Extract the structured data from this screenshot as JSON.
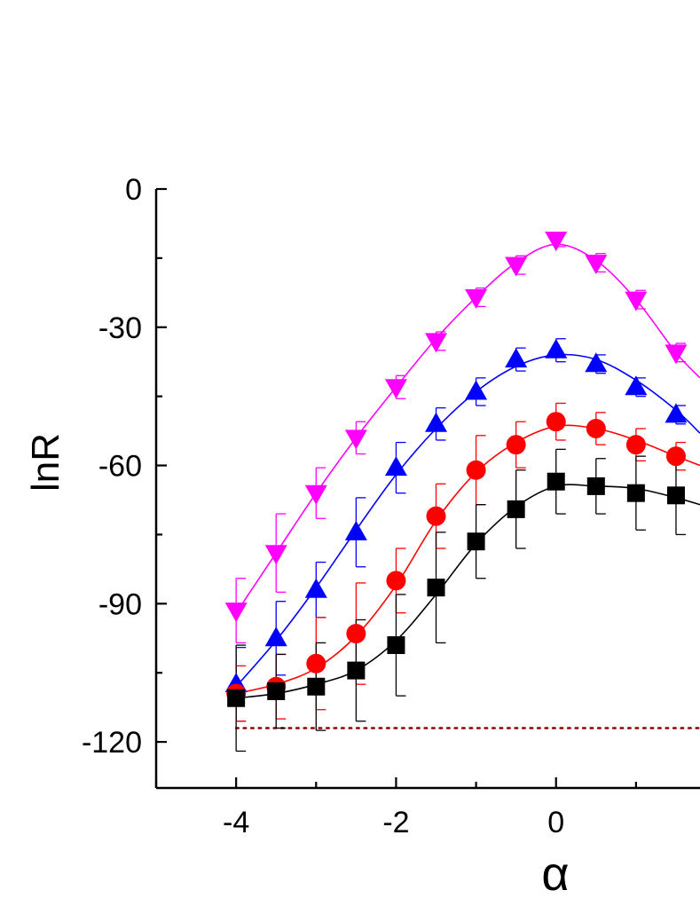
{
  "chart_data": {
    "type": "line",
    "xlabel": "α",
    "ylabel": "lnR",
    "xlim": [
      -5,
      1.8
    ],
    "ylim": [
      -130,
      0
    ],
    "xticks": [
      -4,
      -2,
      0
    ],
    "xtick_labels": [
      "-4",
      "-2",
      "0"
    ],
    "yticks": [
      0,
      -30,
      -60,
      -90,
      -120
    ],
    "ytick_labels": [
      "0",
      "-30",
      "-60",
      "-90",
      "-120"
    ],
    "x": [
      -4,
      -3.5,
      -3,
      -2.5,
      -2,
      -1.5,
      -1,
      -0.5,
      0,
      0.5,
      1,
      1.5
    ],
    "series": [
      {
        "marker": "triangle-down",
        "color": "#ff00ff",
        "values": [
          -91.5,
          -79,
          -66,
          -54,
          -43,
          -33,
          -23.5,
          -16.5,
          -11,
          -16,
          -24,
          -35.5
        ],
        "err_plus": [
          7,
          8.5,
          5.5,
          3.5,
          2.5,
          2,
          2,
          2,
          1.5,
          2,
          2,
          2
        ],
        "err_minus": [
          7,
          8.5,
          5.5,
          3.5,
          2.5,
          2,
          2,
          2,
          1.5,
          2,
          2,
          2
        ],
        "curve": [
          [
            -4,
            -92
          ],
          [
            -3.5,
            -79
          ],
          [
            -3,
            -66
          ],
          [
            -2.5,
            -54
          ],
          [
            -2,
            -43
          ],
          [
            -1.5,
            -32.5
          ],
          [
            -1,
            -23.5
          ],
          [
            -0.5,
            -16
          ],
          [
            0,
            -12
          ],
          [
            0.5,
            -15.5
          ],
          [
            1,
            -24
          ],
          [
            1.5,
            -35.5
          ],
          [
            1.8,
            -41
          ]
        ]
      },
      {
        "marker": "triangle-up",
        "color": "#0000ff",
        "values": [
          -107.5,
          -97.5,
          -87,
          -74.5,
          -60.5,
          -51,
          -44,
          -37,
          -35,
          -38,
          -43,
          -49
        ],
        "err_plus": [
          8,
          8,
          6,
          7.5,
          5.5,
          3.5,
          3,
          2.5,
          2.5,
          2,
          2,
          2
        ],
        "err_minus": [
          8,
          8,
          6,
          7.5,
          5.5,
          3.5,
          3,
          2.5,
          2.5,
          2,
          2,
          2
        ],
        "curve": [
          [
            -4,
            -108
          ],
          [
            -3.5,
            -98
          ],
          [
            -3,
            -86.5
          ],
          [
            -2.5,
            -74
          ],
          [
            -2,
            -62
          ],
          [
            -1.5,
            -52
          ],
          [
            -1,
            -44
          ],
          [
            -0.5,
            -38.5
          ],
          [
            0,
            -36
          ],
          [
            0.5,
            -37
          ],
          [
            1,
            -41.5
          ],
          [
            1.5,
            -48
          ],
          [
            1.8,
            -53
          ]
        ]
      },
      {
        "marker": "circle",
        "color": "#ff0000",
        "values": [
          -109.5,
          -108,
          -103,
          -96.5,
          -85,
          -71,
          -61,
          -55.5,
          -50.5,
          -52,
          -55.5,
          -58
        ],
        "err_plus": [
          6,
          7,
          10,
          11,
          7,
          7,
          7.5,
          5,
          4,
          3.5,
          3.5,
          3
        ],
        "err_minus": [
          6,
          7,
          10,
          11,
          7,
          7,
          7.5,
          5,
          4,
          3.5,
          3.5,
          3
        ],
        "curve": [
          [
            -4,
            -109.5
          ],
          [
            -3.5,
            -107.5
          ],
          [
            -3,
            -104
          ],
          [
            -2.5,
            -97
          ],
          [
            -2,
            -86
          ],
          [
            -1.5,
            -72
          ],
          [
            -1,
            -61.5
          ],
          [
            -0.5,
            -55
          ],
          [
            0,
            -51.5
          ],
          [
            0.5,
            -52
          ],
          [
            1,
            -54.5
          ],
          [
            1.5,
            -58
          ],
          [
            1.8,
            -60
          ]
        ]
      },
      {
        "marker": "square",
        "color": "#000000",
        "values": [
          -110.5,
          -109,
          -108,
          -104.5,
          -99,
          -86.5,
          -76.5,
          -69.5,
          -63.5,
          -64.5,
          -66,
          -66.5
        ],
        "err_plus": [
          11.5,
          8,
          9.5,
          11,
          11,
          12,
          8,
          8.5,
          7,
          6,
          8,
          8.5
        ],
        "err_minus": [
          11.5,
          8,
          9.5,
          11,
          11,
          12,
          8,
          8.5,
          7,
          6,
          8,
          8.5
        ],
        "curve": [
          [
            -4,
            -110.5
          ],
          [
            -3.5,
            -109.5
          ],
          [
            -3,
            -107.5
          ],
          [
            -2.5,
            -104.5
          ],
          [
            -2,
            -98
          ],
          [
            -1.5,
            -88
          ],
          [
            -1,
            -77
          ],
          [
            -0.5,
            -69
          ],
          [
            0,
            -64.5
          ],
          [
            0.5,
            -64.5
          ],
          [
            1,
            -65
          ],
          [
            1.5,
            -67
          ],
          [
            1.8,
            -68.5
          ]
        ]
      }
    ],
    "reference_line": {
      "y": -117,
      "x_from": -4,
      "x_to": 1.8,
      "style": "dotted",
      "color": "#8b0000"
    }
  }
}
